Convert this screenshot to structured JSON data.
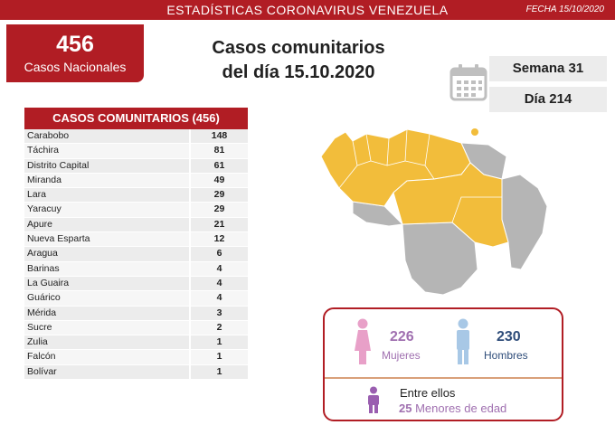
{
  "header": {
    "title": "ESTADÍSTICAS CORONAVIRUS VENEZUELA",
    "date": "FECHA 15/10/2020"
  },
  "national": {
    "count": "456",
    "label": "Casos Nacionales"
  },
  "heading": {
    "line1": "Casos comunitarios",
    "line2": "del día 15.10.2020"
  },
  "calendar": {
    "week": "Semana 31",
    "day": "Día 214"
  },
  "table": {
    "title": "CASOS COMUNITARIOS (456)",
    "rows": [
      {
        "state": "Carabobo",
        "cases": "148"
      },
      {
        "state": "Táchira",
        "cases": "81"
      },
      {
        "state": "Distrito Capital",
        "cases": "61"
      },
      {
        "state": "Miranda",
        "cases": "49"
      },
      {
        "state": "Lara",
        "cases": "29"
      },
      {
        "state": "Yaracuy",
        "cases": "29"
      },
      {
        "state": "Apure",
        "cases": "21"
      },
      {
        "state": "Nueva Esparta",
        "cases": "12"
      },
      {
        "state": "Aragua",
        "cases": "6"
      },
      {
        "state": "Barinas",
        "cases": "4"
      },
      {
        "state": "La Guaira",
        "cases": "4"
      },
      {
        "state": "Guárico",
        "cases": "4"
      },
      {
        "state": "Mérida",
        "cases": "3"
      },
      {
        "state": "Sucre",
        "cases": "2"
      },
      {
        "state": "Zulia",
        "cases": "1"
      },
      {
        "state": "Falcón",
        "cases": "1"
      },
      {
        "state": "Bolívar",
        "cases": "1"
      }
    ]
  },
  "gender": {
    "women_count": "226",
    "women_label": "Mujeres",
    "men_count": "230",
    "men_label": "Hombres",
    "minors_intro": "Entre ellos",
    "minors_count": "25",
    "minors_label": "Menores de edad"
  },
  "colors": {
    "brand_red": "#b11d24",
    "map_highlight": "#f2bd3b",
    "map_other": "#b5b5b5",
    "women_pink": "#e8a0c8",
    "men_blue": "#a8c8e6",
    "minor_purple": "#9a5eb0"
  }
}
